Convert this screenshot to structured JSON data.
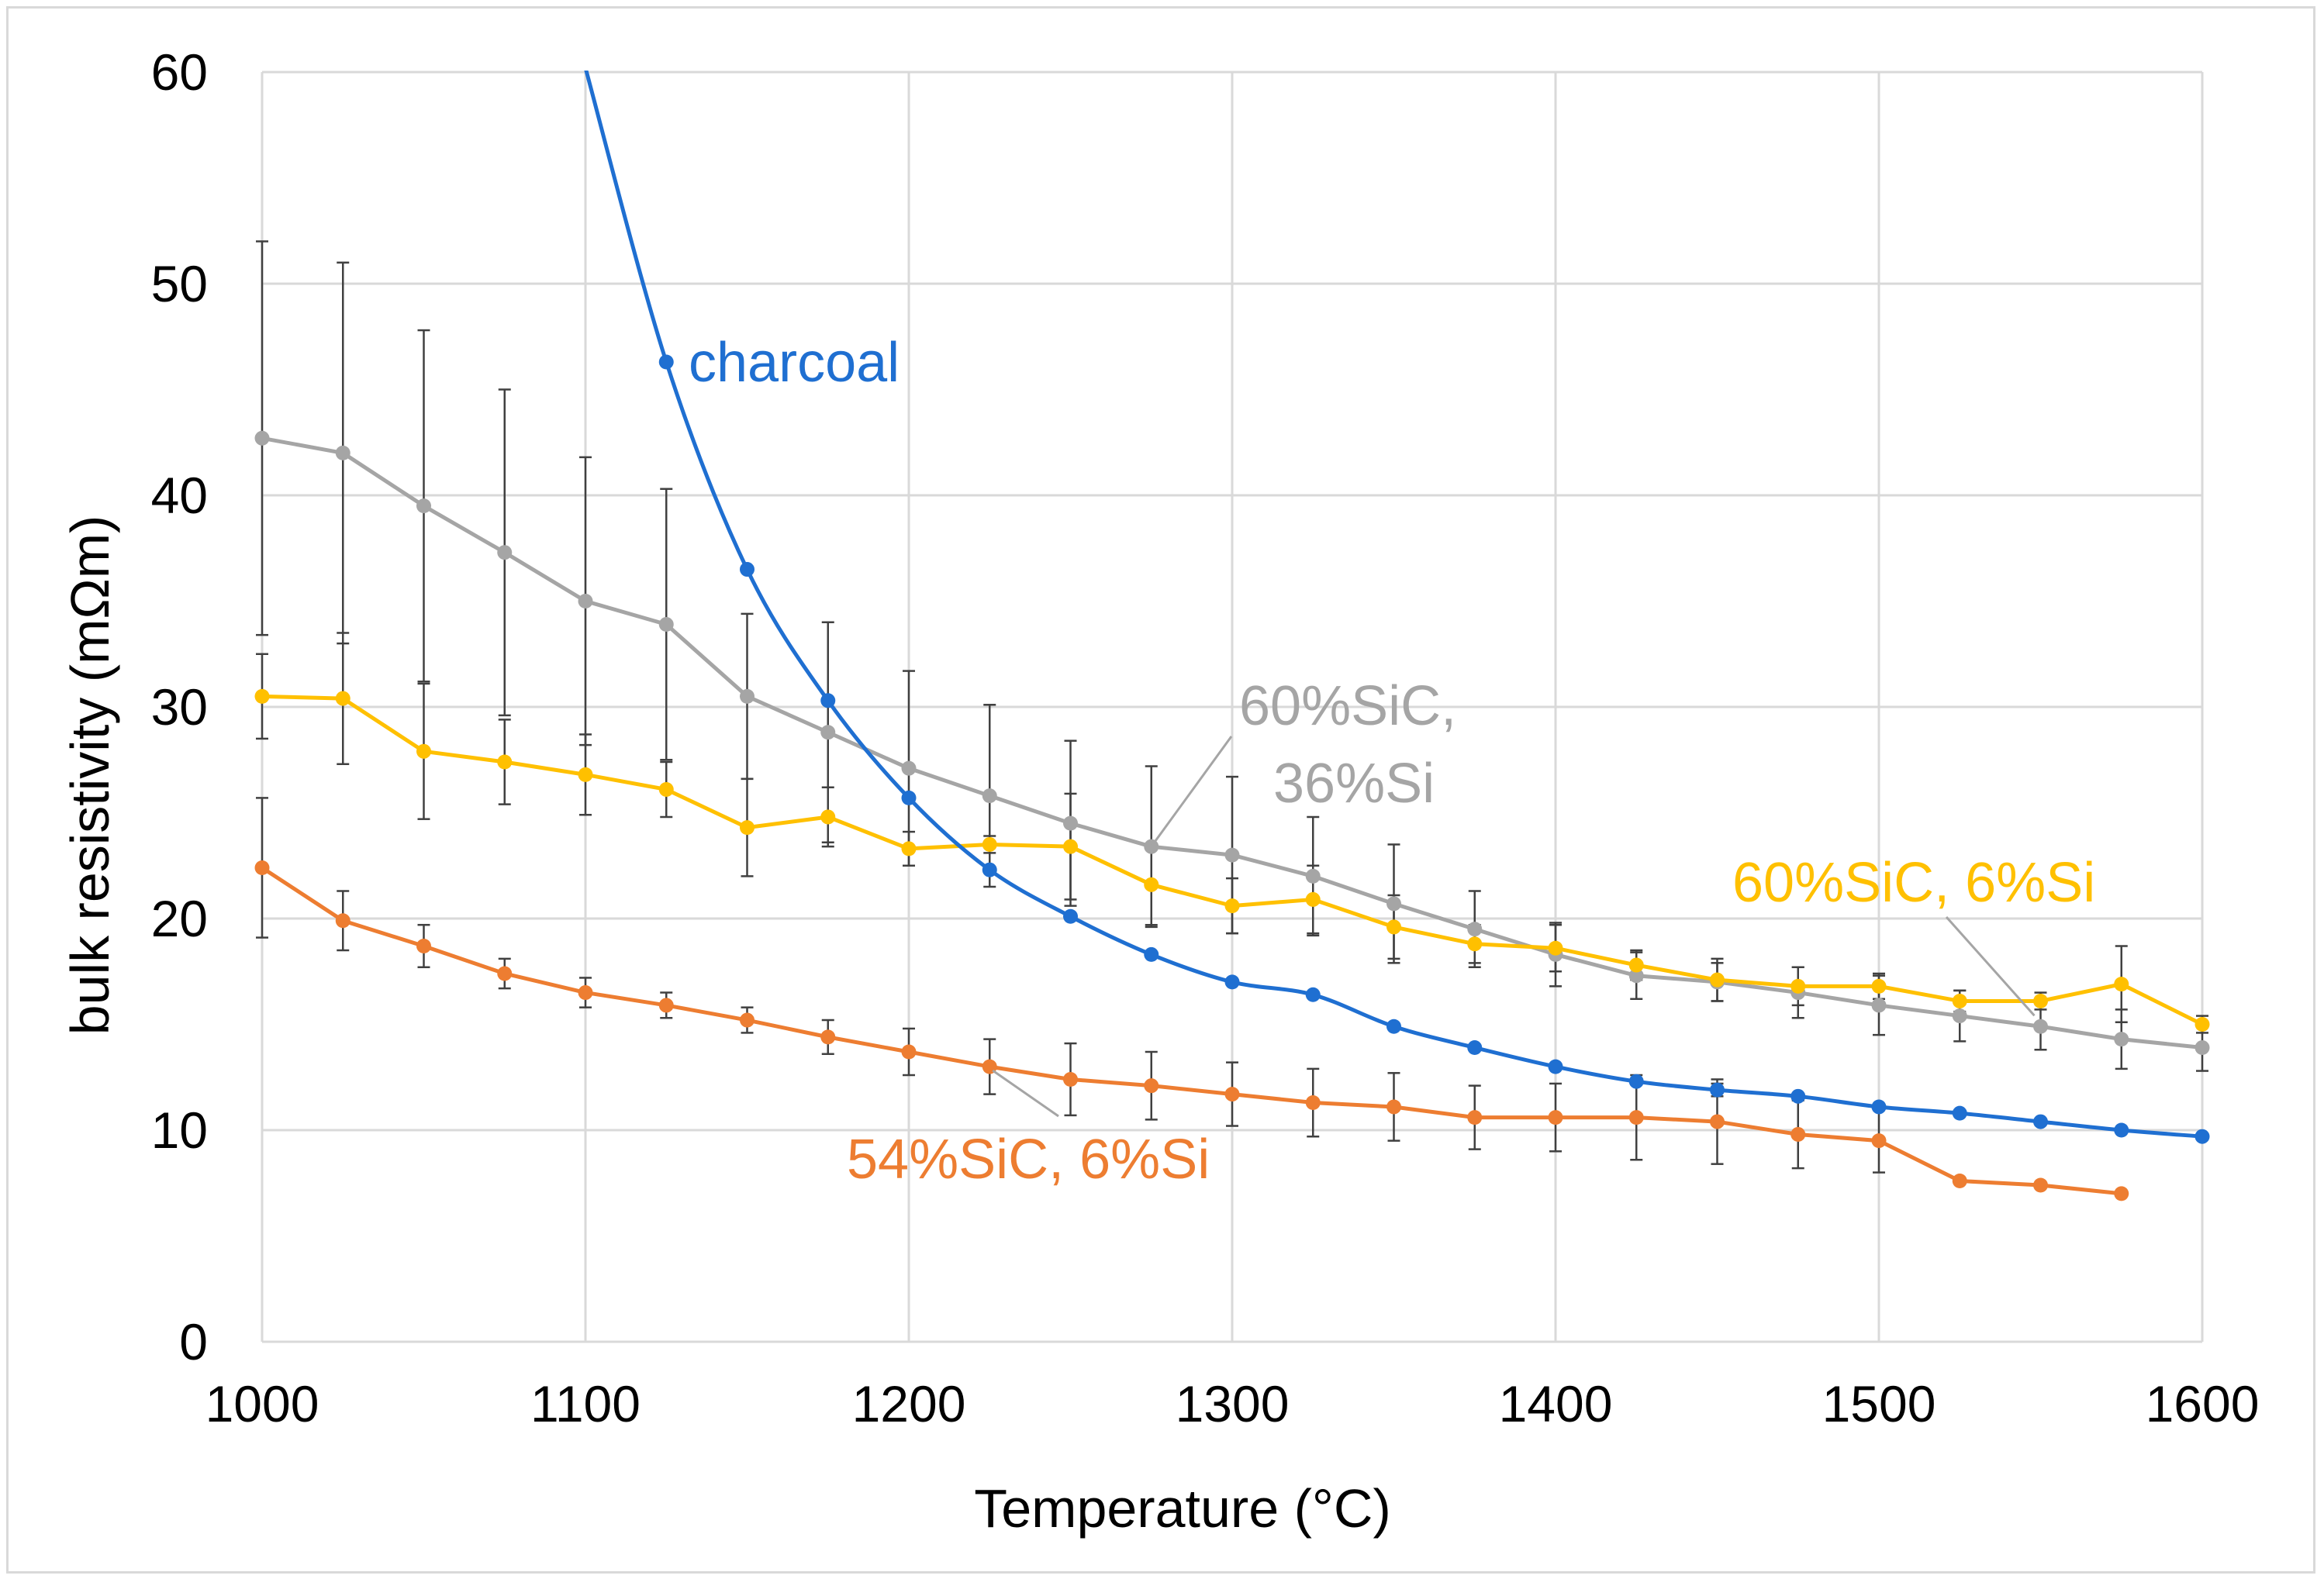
{
  "chart_data": {
    "type": "line",
    "xlabel": "Temperature (°C)",
    "ylabel": "bulk resistivity (mΩm)",
    "xlim": [
      1000,
      1600
    ],
    "ylim": [
      0,
      60
    ],
    "x_ticks": [
      "1000",
      "1100",
      "1200",
      "1300",
      "1400",
      "1500",
      "1600"
    ],
    "y_ticks": [
      "0",
      "10",
      "20",
      "30",
      "40",
      "50",
      "60"
    ],
    "grid": true,
    "legend": "none (direct labels)",
    "series": [
      {
        "name": "charcoal",
        "color": "#1f6fd1",
        "smooth": true,
        "x": [
          1100,
          1125,
          1150,
          1175,
          1200,
          1225,
          1250,
          1275,
          1300,
          1325,
          1350,
          1375,
          1400,
          1425,
          1450,
          1475,
          1500,
          1525,
          1550,
          1575,
          1600
        ],
        "y": [
          60.2,
          46.3,
          36.5,
          30.3,
          25.7,
          22.3,
          20.1,
          18.3,
          17.0,
          16.4,
          14.9,
          13.9,
          13.0,
          12.3,
          11.9,
          11.6,
          11.1,
          10.8,
          10.4,
          10.0,
          9.7
        ],
        "err": [
          0,
          0,
          0,
          0,
          0,
          0,
          0,
          0,
          0,
          0,
          0,
          0,
          0,
          0,
          0.3,
          0,
          0,
          0,
          0,
          0,
          0
        ]
      },
      {
        "name": "60%SiC, 36%Si",
        "color": "#a5a5a5",
        "smooth": false,
        "x": [
          1000,
          1025,
          1050,
          1075,
          1100,
          1125,
          1150,
          1175,
          1200,
          1225,
          1250,
          1275,
          1300,
          1325,
          1350,
          1375,
          1400,
          1425,
          1450,
          1475,
          1500,
          1525,
          1550,
          1575,
          1600
        ],
        "y": [
          42.7,
          42.0,
          39.5,
          37.3,
          35.0,
          33.9,
          30.5,
          28.8,
          27.1,
          25.8,
          24.5,
          23.4,
          23.0,
          22.0,
          20.7,
          19.5,
          18.3,
          17.3,
          17.0,
          16.5,
          15.9,
          15.4,
          14.9,
          14.3,
          13.9
        ],
        "err": [
          9.3,
          9.0,
          8.3,
          7.7,
          6.8,
          6.4,
          3.9,
          5.2,
          4.6,
          4.3,
          3.9,
          3.8,
          3.7,
          2.8,
          2.8,
          1.8,
          1.5,
          1.1,
          0.9,
          1.2,
          1.4,
          1.2,
          1.1,
          1.4,
          1.1
        ]
      },
      {
        "name": "60%SiC, 6%Si",
        "color": "#ffc000",
        "smooth": false,
        "x": [
          1000,
          1025,
          1050,
          1075,
          1100,
          1125,
          1150,
          1175,
          1200,
          1225,
          1250,
          1275,
          1300,
          1325,
          1350,
          1375,
          1400,
          1425,
          1450,
          1475,
          1500,
          1525,
          1550,
          1575,
          1600
        ],
        "y": [
          30.5,
          30.4,
          27.9,
          27.4,
          26.8,
          26.1,
          24.3,
          24.8,
          23.3,
          23.5,
          23.4,
          21.6,
          20.6,
          20.9,
          19.6,
          18.8,
          18.6,
          17.8,
          17.1,
          16.8,
          16.8,
          16.1,
          16.1,
          16.9,
          15.0
        ],
        "err": [
          2.0,
          3.1,
          3.2,
          2.0,
          1.9,
          1.3,
          2.3,
          1.4,
          0.8,
          0.4,
          2.5,
          1.9,
          1.3,
          1.6,
          1.5,
          0.9,
          1.1,
          0.7,
          1.0,
          0.9,
          0.6,
          0.5,
          0.4,
          1.8,
          0.4
        ]
      },
      {
        "name": "54%SiC, 6%Si",
        "color": "#ed7d31",
        "smooth": false,
        "x": [
          1000,
          1025,
          1050,
          1075,
          1100,
          1125,
          1150,
          1175,
          1200,
          1225,
          1250,
          1275,
          1300,
          1325,
          1350,
          1375,
          1400,
          1425,
          1450,
          1475,
          1500,
          1525,
          1550,
          1575
        ],
        "y": [
          22.4,
          19.9,
          18.7,
          17.4,
          16.5,
          15.9,
          15.2,
          14.4,
          13.7,
          13.0,
          12.4,
          12.1,
          11.7,
          11.3,
          11.1,
          10.6,
          10.6,
          10.6,
          10.4,
          9.8,
          9.5,
          7.6,
          7.4,
          7.0
        ],
        "err": [
          3.3,
          1.4,
          1.0,
          0.7,
          0.7,
          0.6,
          0.6,
          0.8,
          1.1,
          1.3,
          1.7,
          1.6,
          1.5,
          1.6,
          1.6,
          1.5,
          1.6,
          2.0,
          2.0,
          1.6,
          1.5,
          0,
          0,
          0
        ]
      }
    ],
    "annotations": [
      {
        "text": "charcoal",
        "series": "charcoal"
      },
      {
        "text": "60%SiC,",
        "text2": "36%Si",
        "series": "60%SiC, 36%Si"
      },
      {
        "text": "60%SiC, 6%Si",
        "series": "60%SiC, 6%Si"
      },
      {
        "text": "54%SiC, 6%Si",
        "series": "54%SiC, 6%Si"
      }
    ]
  }
}
